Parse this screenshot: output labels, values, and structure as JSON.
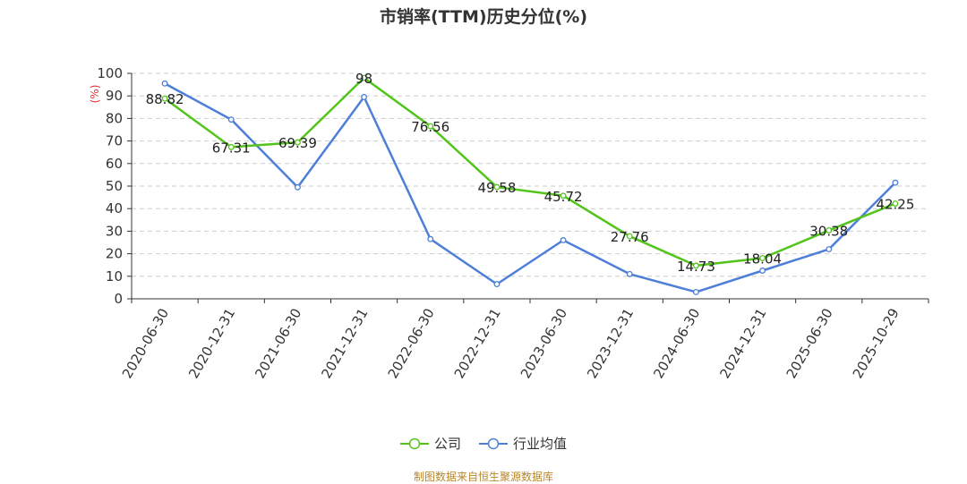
{
  "title": "市销率(TTM)历史分位(%)",
  "source": "制图数据来自恒生聚源数据库",
  "colors": {
    "company": "#52c41a",
    "industry": "#4e7fd8",
    "unit": "#e83030"
  },
  "chart_data": {
    "type": "line",
    "title": "市销率(TTM)历史分位(%)",
    "ylabel": "(%)",
    "ylim": [
      0,
      100
    ],
    "yticks": [
      0,
      10,
      20,
      30,
      40,
      50,
      60,
      70,
      80,
      90,
      100
    ],
    "categories": [
      "2020-06-30",
      "2020-12-31",
      "2021-06-30",
      "2021-12-31",
      "2022-06-30",
      "2022-12-31",
      "2023-06-30",
      "2023-12-31",
      "2024-06-30",
      "2024-12-31",
      "2025-06-30",
      "2025-10-29"
    ],
    "grid": true,
    "legend_position": "bottom",
    "series": [
      {
        "name": "公司",
        "values": [
          88.82,
          67.31,
          69.39,
          98,
          76.56,
          49.58,
          45.72,
          27.76,
          14.73,
          18.04,
          30.38,
          42.25
        ],
        "labels": [
          "88.82",
          "67.31",
          "69.39",
          "98",
          "76.56",
          "49.58",
          "45.72",
          "27.76",
          "14.73",
          "18.04",
          "30.38",
          "42.25"
        ]
      },
      {
        "name": "行业均值",
        "values": [
          95.5,
          79.5,
          49.5,
          89.5,
          26.5,
          6.5,
          26,
          11,
          3,
          12.5,
          22,
          51.5
        ]
      }
    ]
  }
}
